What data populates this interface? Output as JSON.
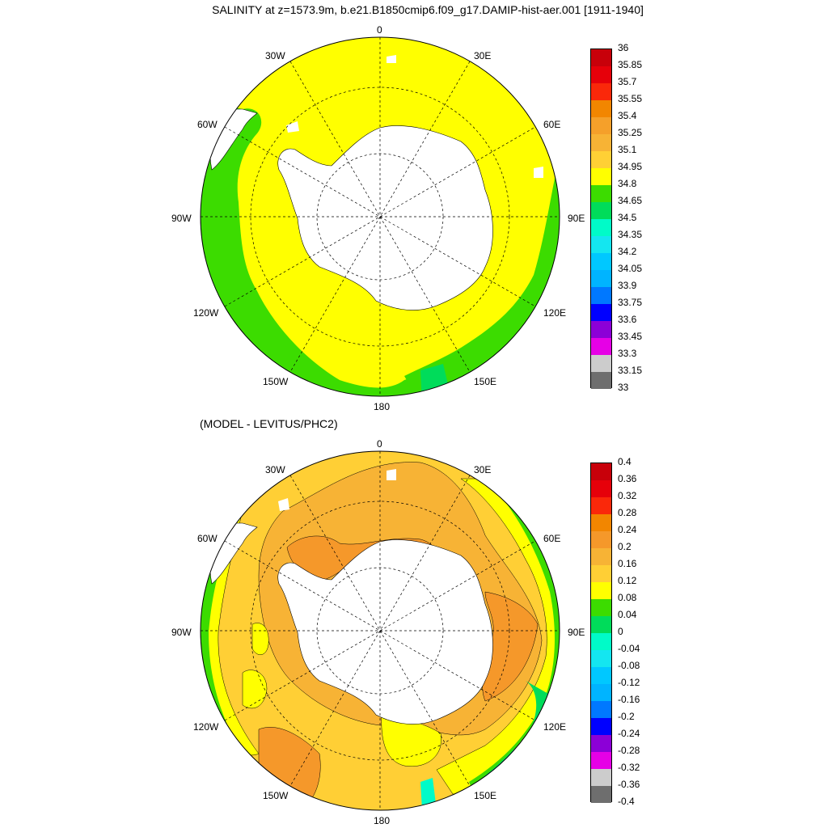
{
  "header": {
    "title": "SALINITY at z=1573.9m, b.e21.B1850cmip6.f09_g17.DAMIP-hist-aer.001 [1911-1940]",
    "subtitle": "(MODEL - LEVITUS/PHC2)"
  },
  "map": {
    "projection": "south polar stereographic",
    "longitude_labels": [
      "0",
      "30E",
      "60E",
      "90E",
      "120E",
      "150E",
      "180",
      "150W",
      "120W",
      "90W",
      "60W",
      "30W"
    ]
  },
  "panel1": {
    "colorbar_ticks": [
      "36",
      "35.85",
      "35.7",
      "35.55",
      "35.4",
      "35.25",
      "35.1",
      "34.95",
      "34.8",
      "34.65",
      "34.5",
      "34.35",
      "34.2",
      "34.05",
      "33.9",
      "33.75",
      "33.6",
      "33.45",
      "33.3",
      "33.15",
      "33"
    ],
    "colorbar_colors": [
      "#c8000a",
      "#e6000a",
      "#fa280a",
      "#f28600",
      "#f5a02a",
      "#f7b335",
      "#ffd035",
      "#ffff00",
      "#3cdc00",
      "#00dc5a",
      "#00fbc8",
      "#14e6f0",
      "#00c8ff",
      "#00b4ff",
      "#0078ff",
      "#0000ff",
      "#8c00d7",
      "#e600e6",
      "#cccccc",
      "#6e6e6e"
    ]
  },
  "panel2": {
    "colorbar_ticks": [
      "0.4",
      "0.36",
      "0.32",
      "0.28",
      "0.24",
      "0.2",
      "0.16",
      "0.12",
      "0.08",
      "0.04",
      "0",
      "-0.04",
      "-0.08",
      "-0.12",
      "-0.16",
      "-0.2",
      "-0.24",
      "-0.28",
      "-0.32",
      "-0.36",
      "-0.4"
    ],
    "colorbar_colors": [
      "#c8000a",
      "#e6000a",
      "#fa280a",
      "#f28600",
      "#f5982a",
      "#f7b335",
      "#ffcf35",
      "#ffff00",
      "#3cdc00",
      "#00dc5a",
      "#00fbc8",
      "#14e6f0",
      "#00c8ff",
      "#00b4ff",
      "#0078ff",
      "#0000ff",
      "#8c00d7",
      "#e600e6",
      "#cccccc",
      "#6e6e6e"
    ]
  }
}
